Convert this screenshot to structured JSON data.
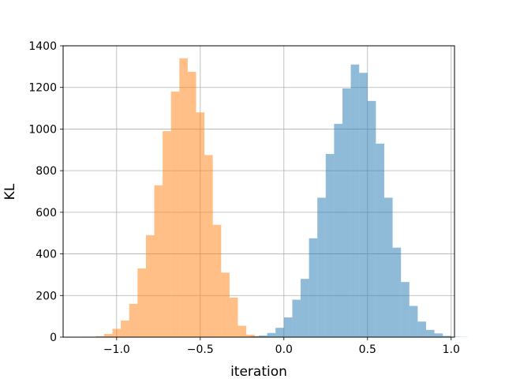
{
  "chart_data": {
    "type": "histogram",
    "title": "",
    "xlabel": "iteration",
    "ylabel": "KL",
    "xlim": [
      -1.32,
      1.02
    ],
    "ylim": [
      0,
      1400
    ],
    "xticks": [
      -1.0,
      -0.5,
      0.0,
      0.5,
      1.0
    ],
    "xtick_labels": [
      "−1.0",
      "−0.5",
      "0.0",
      "0.5",
      "1.0"
    ],
    "yticks": [
      0,
      200,
      400,
      600,
      800,
      1000,
      1200,
      1400
    ],
    "ytick_labels": [
      "0",
      "200",
      "400",
      "600",
      "800",
      "1000",
      "1200",
      "1400"
    ],
    "grid": true,
    "alpha": 0.5,
    "series": [
      {
        "color": "#1f77b4",
        "bin_start": -0.3,
        "bin_width": 0.05,
        "counts": [
          1,
          2,
          5,
          8,
          20,
          45,
          95,
          180,
          280,
          475,
          670,
          880,
          1025,
          1195,
          1310,
          1270,
          1135,
          930,
          670,
          430,
          265,
          150,
          75,
          35,
          18,
          6,
          2,
          1
        ]
      },
      {
        "color": "#ff7f0e",
        "bin_start": -1.175,
        "bin_width": 0.05,
        "counts": [
          2,
          5,
          15,
          40,
          80,
          160,
          330,
          490,
          730,
          990,
          1180,
          1340,
          1275,
          1080,
          875,
          540,
          310,
          190,
          55,
          12,
          4,
          2
        ]
      }
    ]
  }
}
